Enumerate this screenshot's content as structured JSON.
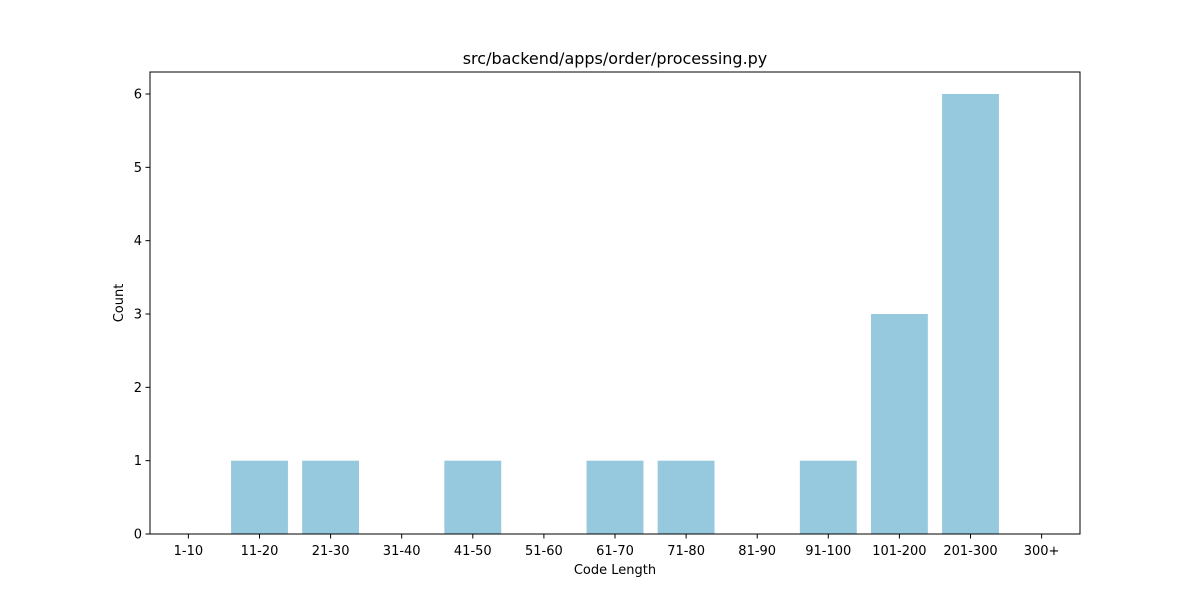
{
  "chart_data": {
    "type": "bar",
    "title": "src/backend/apps/order/processing.py",
    "xlabel": "Code Length",
    "ylabel": "Count",
    "categories": [
      "1-10",
      "11-20",
      "21-30",
      "31-40",
      "41-50",
      "51-60",
      "61-70",
      "71-80",
      "81-90",
      "91-100",
      "101-200",
      "201-300",
      "300+"
    ],
    "values": [
      0,
      1,
      1,
      0,
      1,
      0,
      1,
      1,
      0,
      1,
      3,
      6,
      0
    ],
    "ylim": [
      0,
      6.3
    ],
    "yticks": [
      0,
      1,
      2,
      3,
      4,
      5,
      6
    ],
    "bar_color": "#96c9dd",
    "grid": false,
    "legend": "none"
  }
}
